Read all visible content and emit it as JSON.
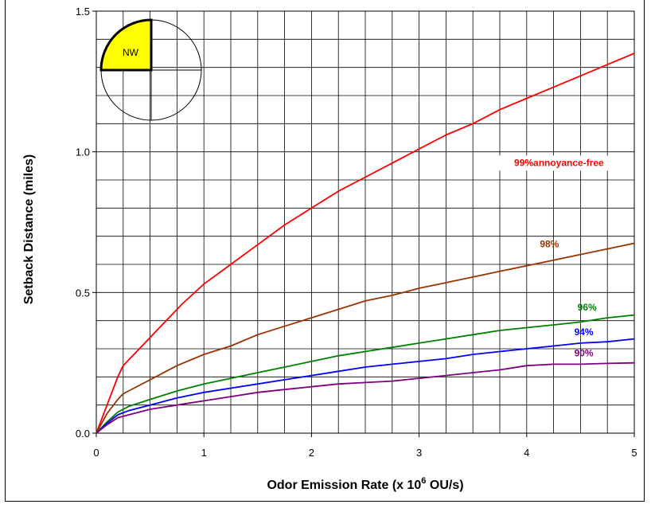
{
  "chart_data": {
    "type": "line",
    "title": "",
    "xlabel": "Odor Emission Rate (x 10",
    "xlabel_sup": "6",
    "xlabel_suffix": " OU/s)",
    "ylabel": "Setback Distance (miles)",
    "xlim": [
      0,
      5
    ],
    "ylim": [
      0,
      1.5
    ],
    "x_ticks": [
      0,
      1,
      2,
      3,
      4,
      5
    ],
    "x_tick_labels": [
      "0",
      "1",
      "2",
      "3",
      "4",
      "5"
    ],
    "y_ticks": [
      0,
      0.5,
      1.0,
      1.5
    ],
    "y_tick_labels": [
      "0.0",
      "0.5",
      "1.0",
      "1.5"
    ],
    "x_minor_step": 0.25,
    "y_minor_step": 0.1,
    "grid": true,
    "inset": {
      "type": "compass-quadrant",
      "label": "NW",
      "highlight_color": "#ffff00"
    },
    "series": [
      {
        "name": "99%annoyance-free",
        "color": "#ff0000",
        "x": [
          0,
          0.1,
          0.2,
          0.25,
          0.3,
          0.4,
          0.5,
          0.6,
          0.7,
          0.8,
          1.0,
          1.25,
          1.5,
          1.75,
          2.0,
          2.25,
          2.5,
          2.75,
          3.0,
          3.25,
          3.5,
          3.75,
          4.0,
          4.25,
          4.5,
          4.75,
          5.0
        ],
        "values": [
          0,
          0.1,
          0.2,
          0.24,
          0.26,
          0.3,
          0.34,
          0.38,
          0.42,
          0.46,
          0.53,
          0.6,
          0.67,
          0.74,
          0.8,
          0.86,
          0.91,
          0.96,
          1.01,
          1.06,
          1.1,
          1.15,
          1.19,
          1.23,
          1.27,
          1.31,
          1.35
        ]
      },
      {
        "name": "98%",
        "color": "#993300",
        "x": [
          0,
          0.1,
          0.2,
          0.25,
          0.35,
          0.5,
          0.75,
          1.0,
          1.25,
          1.5,
          1.75,
          2.0,
          2.25,
          2.5,
          2.75,
          3.0,
          3.25,
          3.5,
          3.75,
          4.0,
          4.25,
          4.5,
          4.75,
          5.0
        ],
        "values": [
          0,
          0.07,
          0.12,
          0.14,
          0.16,
          0.19,
          0.24,
          0.28,
          0.31,
          0.35,
          0.38,
          0.41,
          0.44,
          0.47,
          0.49,
          0.515,
          0.535,
          0.555,
          0.575,
          0.595,
          0.615,
          0.635,
          0.655,
          0.675
        ]
      },
      {
        "name": "96%",
        "color": "#008000",
        "x": [
          0,
          0.1,
          0.2,
          0.3,
          0.5,
          0.75,
          1.0,
          1.25,
          1.5,
          1.75,
          2.0,
          2.25,
          2.5,
          2.75,
          3.0,
          3.25,
          3.5,
          3.75,
          4.0,
          4.25,
          4.5,
          4.75,
          5.0
        ],
        "values": [
          0,
          0.04,
          0.075,
          0.095,
          0.12,
          0.15,
          0.175,
          0.195,
          0.215,
          0.235,
          0.255,
          0.275,
          0.29,
          0.305,
          0.32,
          0.335,
          0.35,
          0.365,
          0.375,
          0.385,
          0.395,
          0.41,
          0.42
        ]
      },
      {
        "name": "94%",
        "color": "#0000ff",
        "x": [
          0,
          0.1,
          0.2,
          0.3,
          0.5,
          0.75,
          1.0,
          1.25,
          1.5,
          1.75,
          2.0,
          2.25,
          2.5,
          2.75,
          3.0,
          3.25,
          3.5,
          3.75,
          4.0,
          4.25,
          4.5,
          4.75,
          5.0
        ],
        "values": [
          0,
          0.035,
          0.065,
          0.08,
          0.1,
          0.125,
          0.145,
          0.16,
          0.175,
          0.19,
          0.205,
          0.22,
          0.235,
          0.245,
          0.255,
          0.265,
          0.28,
          0.29,
          0.3,
          0.31,
          0.32,
          0.325,
          0.335
        ]
      },
      {
        "name": "90%",
        "color": "#800080",
        "x": [
          0,
          0.1,
          0.2,
          0.3,
          0.5,
          0.75,
          1.0,
          1.25,
          1.5,
          1.75,
          2.0,
          2.25,
          2.5,
          2.75,
          3.0,
          3.25,
          3.5,
          3.75,
          4.0,
          4.25,
          4.5,
          4.75,
          5.0
        ],
        "values": [
          0,
          0.03,
          0.055,
          0.065,
          0.085,
          0.1,
          0.115,
          0.13,
          0.145,
          0.155,
          0.165,
          0.175,
          0.18,
          0.185,
          0.195,
          0.205,
          0.215,
          0.225,
          0.24,
          0.245,
          0.245,
          0.248,
          0.25
        ]
      }
    ]
  }
}
